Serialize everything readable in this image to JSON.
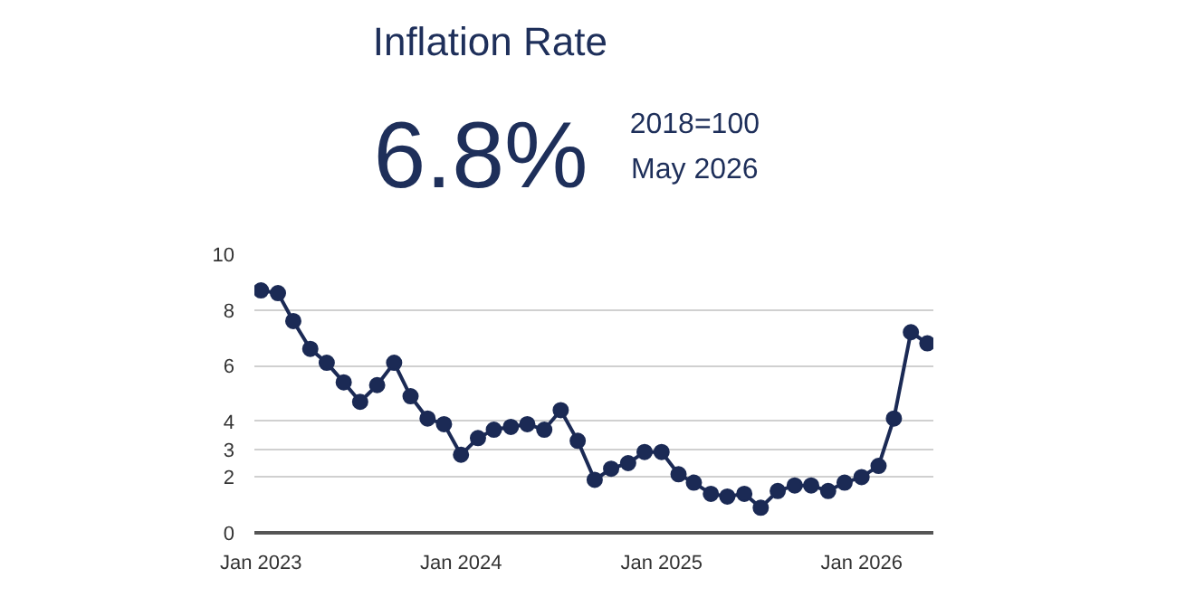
{
  "chart_data": {
    "type": "line",
    "title": "Inflation Rate",
    "annotations": [
      "6.8%",
      "2018=100",
      "May 2026"
    ],
    "x": [
      "2023-01",
      "2023-02",
      "2023-03",
      "2023-04",
      "2023-05",
      "2023-06",
      "2023-07",
      "2023-08",
      "2023-09",
      "2023-10",
      "2023-11",
      "2023-12",
      "2024-01",
      "2024-02",
      "2024-03",
      "2024-04",
      "2024-05",
      "2024-06",
      "2024-07",
      "2024-08",
      "2024-09",
      "2024-10",
      "2024-11",
      "2024-12",
      "2025-01",
      "2025-02",
      "2025-03",
      "2025-04",
      "2025-05",
      "2025-06",
      "2025-07",
      "2025-08",
      "2025-09",
      "2025-10",
      "2025-11",
      "2025-12",
      "2026-01",
      "2026-02",
      "2026-03",
      "2026-04",
      "2026-05"
    ],
    "series": [
      {
        "color": "#1b2a55",
        "values": [
          8.7,
          8.6,
          7.6,
          6.6,
          6.1,
          5.4,
          4.7,
          5.3,
          6.1,
          4.9,
          4.1,
          3.9,
          2.8,
          3.4,
          3.7,
          3.8,
          3.9,
          3.7,
          4.4,
          3.3,
          1.9,
          2.3,
          2.5,
          2.9,
          2.9,
          2.1,
          1.8,
          1.4,
          1.3,
          1.4,
          0.9,
          1.5,
          1.7,
          1.7,
          1.5,
          1.8,
          2.0,
          2.4,
          4.1,
          7.2,
          6.8
        ]
      }
    ],
    "xlim": [
      "2022-12-20",
      "2026-05-12"
    ],
    "xticks": [
      {
        "value": "2023-01",
        "label": "Jan 2023"
      },
      {
        "value": "2024-01",
        "label": "Jan 2024"
      },
      {
        "value": "2025-01",
        "label": "Jan 2025"
      },
      {
        "value": "2026-01",
        "label": "Jan 2026"
      }
    ],
    "ylim": [
      0,
      10
    ],
    "yticks": [
      0,
      2,
      3,
      4,
      6,
      8,
      10
    ],
    "grid": "y",
    "marker": "circle",
    "line_style": "solid"
  }
}
